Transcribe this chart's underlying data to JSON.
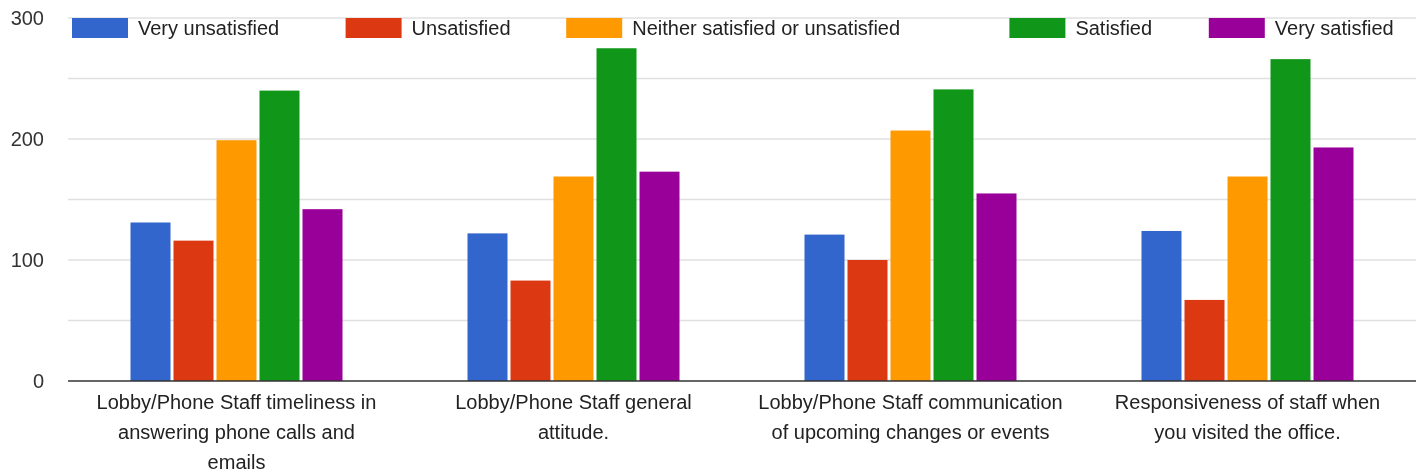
{
  "chart_data": {
    "type": "bar",
    "categories": [
      "Lobby/Phone Staff timeliness in answering phone calls and emails",
      "Lobby/Phone Staff general attitude.",
      "Lobby/Phone Staff communication of upcoming changes or events",
      "Responsiveness of staff when you visited the office."
    ],
    "series": [
      {
        "name": "Very unsatisfied",
        "color": "#3366cc",
        "values": [
          131,
          122,
          121,
          124
        ]
      },
      {
        "name": "Unsatisfied",
        "color": "#dc3912",
        "values": [
          116,
          83,
          100,
          67
        ]
      },
      {
        "name": "Neither satisfied or unsatisfied",
        "color": "#ff9900",
        "values": [
          199,
          169,
          207,
          169
        ]
      },
      {
        "name": "Satisfied",
        "color": "#109618",
        "values": [
          240,
          275,
          241,
          266
        ]
      },
      {
        "name": "Very satisfied",
        "color": "#990099",
        "values": [
          142,
          173,
          155,
          193
        ]
      }
    ],
    "ylim": [
      0,
      300
    ],
    "yticks": [
      0,
      {
        "value": 50,
        "label": null
      },
      100,
      {
        "value": 150,
        "label": null
      },
      200,
      {
        "value": 250,
        "label": null
      },
      300
    ],
    "grid": "y",
    "legend": "top"
  }
}
